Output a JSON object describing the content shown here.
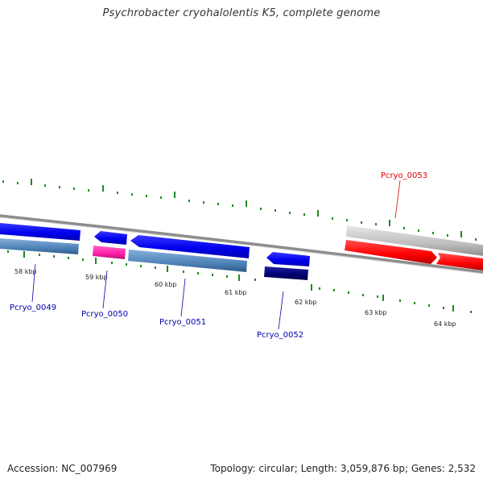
{
  "title": "Psychrobacter cryohalolentis K5, complete genome",
  "footer": {
    "accession": "Accession: NC_007969",
    "summary": "Topology: circular; Length: 3,059,876 bp; Genes: 2,532"
  },
  "colors": {
    "forward": "#0000ee",
    "reverse_steel": "#4f83b8",
    "pink": "#ff1fa8",
    "navy": "#000070",
    "rna_gray": "#bdbdbd",
    "red": "#ff0000",
    "tick": "#1f8a1f",
    "backbone": "#8c8c8c"
  },
  "scale": {
    "ticks": [
      "58 kbp",
      "59 kbp",
      "60 kbp",
      "61 kbp",
      "62 kbp",
      "63 kbp",
      "64 kbp"
    ]
  },
  "genes": [
    {
      "id": "Pcryo_0049",
      "label": "Pcryo_0049",
      "color": "#0000aa"
    },
    {
      "id": "Pcryo_0050",
      "label": "Pcryo_0050",
      "color": "#0000aa"
    },
    {
      "id": "Pcryo_0051",
      "label": "Pcryo_0051",
      "color": "#0000aa"
    },
    {
      "id": "Pcryo_0052",
      "label": "Pcryo_0052",
      "color": "#0000aa"
    },
    {
      "id": "Pcryo_0053",
      "label": "Pcryo_0053",
      "color": "#dd0000"
    }
  ]
}
